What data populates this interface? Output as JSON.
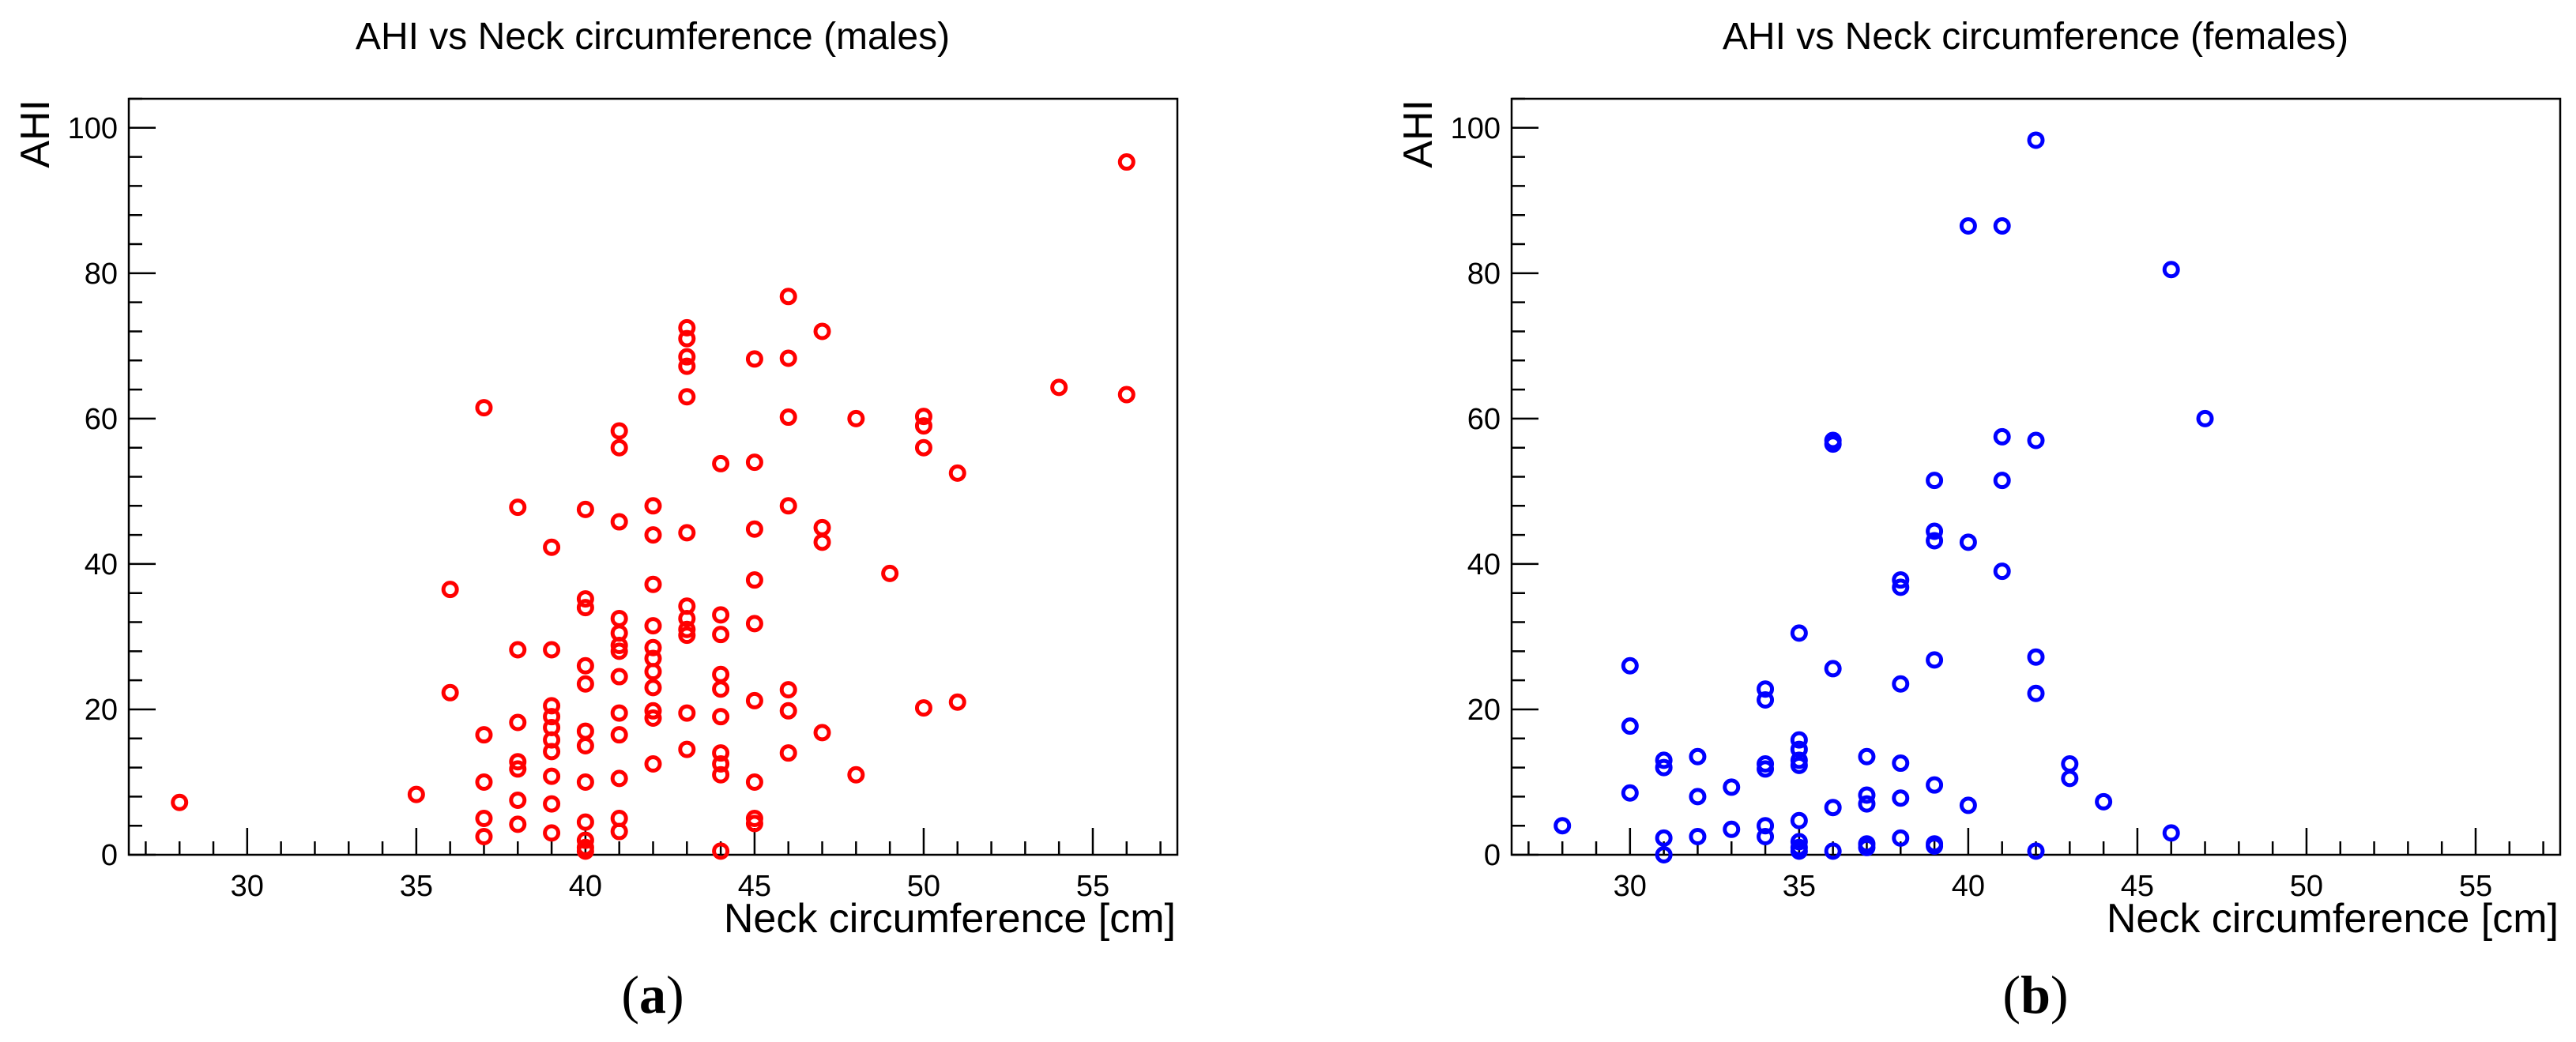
{
  "chart_data": [
    {
      "type": "scatter",
      "title": "AHI vs Neck circumference (males)",
      "xlabel": "Neck circumference [cm]",
      "ylabel": "AHI",
      "panel_label": "a",
      "xlim": [
        26.5,
        57.5
      ],
      "ylim": [
        0,
        104
      ],
      "xticks": [
        30,
        35,
        40,
        45,
        50,
        55
      ],
      "yticks": [
        0,
        20,
        40,
        60,
        80,
        100
      ],
      "color": "#ff0000",
      "series": [
        {
          "name": "males",
          "points": [
            [
              28,
              7.2
            ],
            [
              35,
              8.3
            ],
            [
              36,
              36.5
            ],
            [
              36,
              22.3
            ],
            [
              37,
              61.5
            ],
            [
              37,
              16.5
            ],
            [
              37,
              10
            ],
            [
              37,
              5
            ],
            [
              37,
              2.5
            ],
            [
              38,
              47.8
            ],
            [
              38,
              28.2
            ],
            [
              38,
              18.2
            ],
            [
              38,
              12.8
            ],
            [
              38,
              11.8
            ],
            [
              38,
              7.5
            ],
            [
              38,
              4.2
            ],
            [
              39,
              42.3
            ],
            [
              39,
              28.2
            ],
            [
              39,
              20.5
            ],
            [
              39,
              19
            ],
            [
              39,
              17.5
            ],
            [
              39,
              15.8
            ],
            [
              39,
              14.2
            ],
            [
              39,
              10.8
            ],
            [
              39,
              7
            ],
            [
              39,
              3
            ],
            [
              40,
              47.5
            ],
            [
              40,
              35.2
            ],
            [
              40,
              34
            ],
            [
              40,
              26
            ],
            [
              40,
              23.5
            ],
            [
              40,
              17
            ],
            [
              40,
              15
            ],
            [
              40,
              10
            ],
            [
              40,
              4.5
            ],
            [
              40,
              2
            ],
            [
              40,
              1
            ],
            [
              40,
              0.5
            ],
            [
              41,
              58.3
            ],
            [
              41,
              56
            ],
            [
              41,
              45.8
            ],
            [
              41,
              32.5
            ],
            [
              41,
              30.5
            ],
            [
              41,
              28.8
            ],
            [
              41,
              28
            ],
            [
              41,
              24.5
            ],
            [
              41,
              19.5
            ],
            [
              41,
              16.5
            ],
            [
              41,
              10.5
            ],
            [
              41,
              5
            ],
            [
              41,
              3.2
            ],
            [
              42,
              48
            ],
            [
              42,
              44
            ],
            [
              42,
              37.2
            ],
            [
              42,
              31.5
            ],
            [
              42,
              28.5
            ],
            [
              42,
              27
            ],
            [
              42,
              25.2
            ],
            [
              42,
              23
            ],
            [
              42,
              19.8
            ],
            [
              42,
              18.8
            ],
            [
              42,
              12.5
            ],
            [
              43,
              72.5
            ],
            [
              43,
              71
            ],
            [
              43,
              68.5
            ],
            [
              43,
              67.2
            ],
            [
              43,
              63
            ],
            [
              43,
              44.3
            ],
            [
              43,
              34.2
            ],
            [
              43,
              32.5
            ],
            [
              43,
              31
            ],
            [
              43,
              30.2
            ],
            [
              43,
              19.5
            ],
            [
              43,
              14.5
            ],
            [
              44,
              53.8
            ],
            [
              44,
              33
            ],
            [
              44,
              30.3
            ],
            [
              44,
              24.8
            ],
            [
              44,
              22.8
            ],
            [
              44,
              19
            ],
            [
              44,
              14
            ],
            [
              44,
              12.5
            ],
            [
              44,
              11
            ],
            [
              44,
              0.5
            ],
            [
              45,
              68.2
            ],
            [
              45,
              54
            ],
            [
              45,
              44.8
            ],
            [
              45,
              37.8
            ],
            [
              45,
              31.8
            ],
            [
              45,
              21.2
            ],
            [
              45,
              10
            ],
            [
              45,
              5
            ],
            [
              45,
              4.3
            ],
            [
              46,
              76.8
            ],
            [
              46,
              68.3
            ],
            [
              46,
              60.2
            ],
            [
              46,
              48
            ],
            [
              46,
              22.7
            ],
            [
              46,
              19.8
            ],
            [
              46,
              14
            ],
            [
              47,
              72
            ],
            [
              47,
              45
            ],
            [
              47,
              43
            ],
            [
              47,
              16.8
            ],
            [
              48,
              60
            ],
            [
              48,
              11
            ],
            [
              49,
              38.7
            ],
            [
              50,
              60.3
            ],
            [
              50,
              59
            ],
            [
              50,
              56
            ],
            [
              50,
              20.2
            ],
            [
              51,
              52.5
            ],
            [
              51,
              21
            ],
            [
              54,
              64.3
            ],
            [
              56,
              95.3
            ],
            [
              56,
              63.3
            ]
          ]
        }
      ]
    },
    {
      "type": "scatter",
      "title": "AHI vs Neck circumference (females)",
      "xlabel": "Neck circumference [cm]",
      "ylabel": "AHI",
      "panel_label": "b",
      "xlim": [
        26.5,
        57.5
      ],
      "ylim": [
        0,
        104
      ],
      "xticks": [
        30,
        35,
        40,
        45,
        50,
        55
      ],
      "yticks": [
        0,
        20,
        40,
        60,
        80,
        100
      ],
      "color": "#0000ff",
      "series": [
        {
          "name": "females",
          "points": [
            [
              28,
              4
            ],
            [
              30,
              26
            ],
            [
              30,
              17.7
            ],
            [
              30,
              8.5
            ],
            [
              31,
              13
            ],
            [
              31,
              12
            ],
            [
              31,
              2.3
            ],
            [
              31,
              0
            ],
            [
              32,
              13.5
            ],
            [
              32,
              8
            ],
            [
              32,
              2.5
            ],
            [
              33,
              9.3
            ],
            [
              33,
              3.5
            ],
            [
              34,
              22.8
            ],
            [
              34,
              21.3
            ],
            [
              34,
              12.5
            ],
            [
              34,
              11.8
            ],
            [
              34,
              4
            ],
            [
              34,
              2.5
            ],
            [
              35,
              30.5
            ],
            [
              35,
              15.8
            ],
            [
              35,
              14.5
            ],
            [
              35,
              13
            ],
            [
              35,
              12.3
            ],
            [
              35,
              4.7
            ],
            [
              35,
              1.8
            ],
            [
              35,
              1
            ],
            [
              35,
              0.5
            ],
            [
              36,
              57
            ],
            [
              36,
              56.5
            ],
            [
              36,
              25.6
            ],
            [
              36,
              6.5
            ],
            [
              36,
              0.5
            ],
            [
              37,
              13.5
            ],
            [
              37,
              8.2
            ],
            [
              37,
              7
            ],
            [
              37,
              1.5
            ],
            [
              37,
              1
            ],
            [
              38,
              37.8
            ],
            [
              38,
              36.8
            ],
            [
              38,
              23.5
            ],
            [
              38,
              12.6
            ],
            [
              38,
              7.8
            ],
            [
              38,
              2.3
            ],
            [
              39,
              51.5
            ],
            [
              39,
              44.5
            ],
            [
              39,
              43.2
            ],
            [
              39,
              26.8
            ],
            [
              39,
              9.6
            ],
            [
              39,
              1.5
            ],
            [
              39,
              1.2
            ],
            [
              40,
              86.5
            ],
            [
              40,
              43
            ],
            [
              40,
              6.8
            ],
            [
              41,
              86.5
            ],
            [
              41,
              57.5
            ],
            [
              41,
              51.5
            ],
            [
              41,
              39
            ],
            [
              42,
              98.3
            ],
            [
              42,
              57
            ],
            [
              42,
              27.2
            ],
            [
              42,
              22.2
            ],
            [
              42,
              0.5
            ],
            [
              43,
              12.5
            ],
            [
              43,
              10.5
            ],
            [
              44,
              7.3
            ],
            [
              46,
              80.5
            ],
            [
              46,
              3
            ],
            [
              47,
              60
            ]
          ]
        }
      ]
    }
  ]
}
